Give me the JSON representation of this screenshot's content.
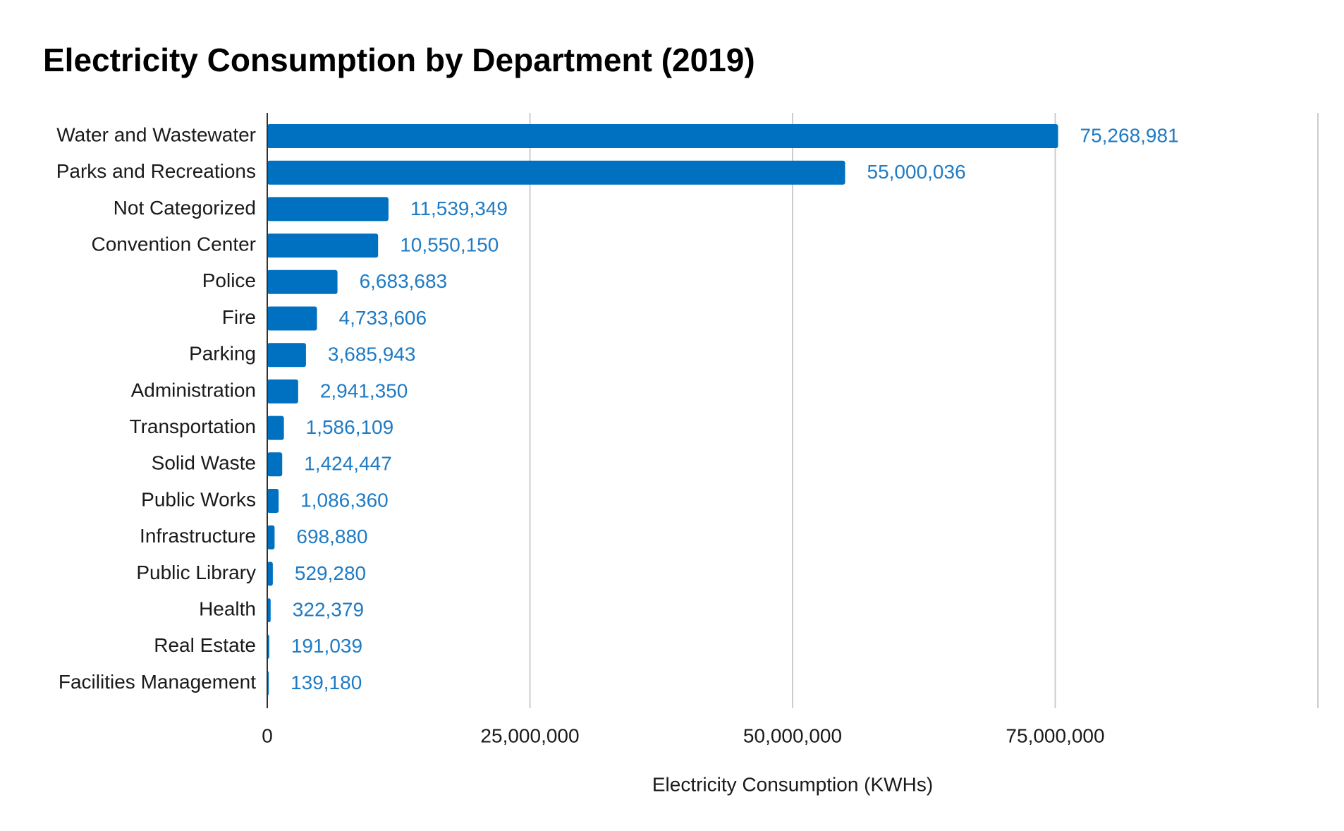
{
  "chart_data": {
    "type": "bar",
    "orientation": "horizontal",
    "title": "Electricity Consumption by Department (2019)",
    "xlabel": "Electricity Consumption (KWHs)",
    "ylabel": "",
    "xlim": [
      0,
      100000000
    ],
    "xticks": [
      0,
      25000000,
      50000000,
      75000000
    ],
    "xtick_labels": [
      "0",
      "25,000,000",
      "50,000,000",
      "75,000,000"
    ],
    "grid": true,
    "legend": "none",
    "bar_color": "#0070c0",
    "value_label_color": "#1f7bc4",
    "categories": [
      "Water and Wastewater",
      "Parks and Recreations",
      "Not Categorized",
      "Convention Center",
      "Police",
      "Fire",
      "Parking",
      "Administration",
      "Transportation",
      "Solid Waste",
      "Public Works",
      "Infrastructure",
      "Public Library",
      "Health",
      "Real Estate",
      "Facilities Management"
    ],
    "values": [
      75268981,
      55000036,
      11539349,
      10550150,
      6683683,
      4733606,
      3685943,
      2941350,
      1586109,
      1424447,
      1086360,
      698880,
      529280,
      322379,
      191039,
      139180
    ],
    "value_labels": [
      "75,268,981",
      "55,000,036",
      "11,539,349",
      "10,550,150",
      "6,683,683",
      "4,733,606",
      "3,685,943",
      "2,941,350",
      "1,586,109",
      "1,424,447",
      "1,086,360",
      "698,880",
      "529,280",
      "322,379",
      "191,039",
      "139,180"
    ]
  }
}
